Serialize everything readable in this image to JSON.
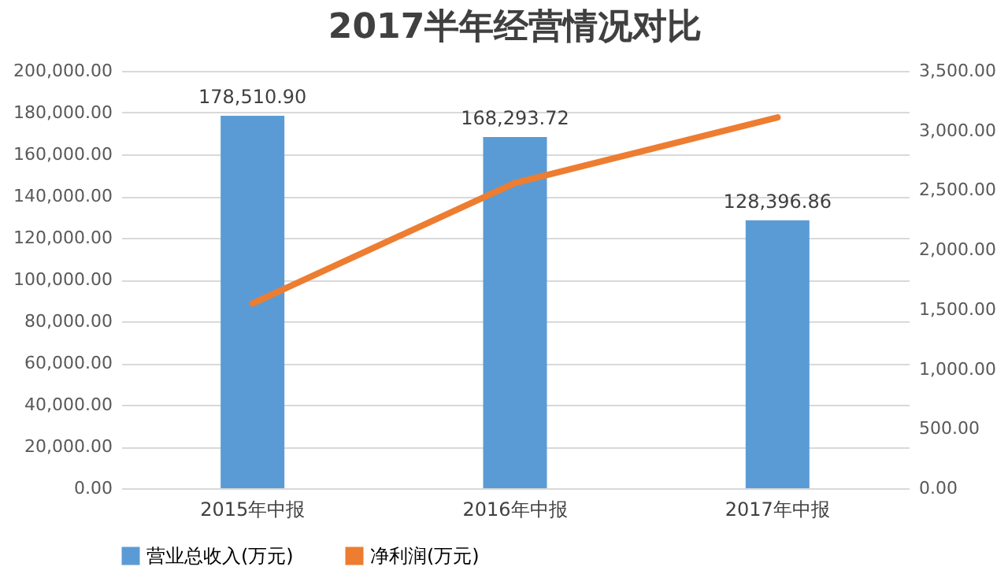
{
  "chart_data": {
    "type": "bar",
    "title": "2017半年经营情况对比",
    "categories": [
      "2015年中报",
      "2016年中报",
      "2017年中报"
    ],
    "series": [
      {
        "name": "营业总收入(万元)",
        "color": "#5b9bd5",
        "values": [
          178510.9,
          168293.72,
          128396.86
        ],
        "value_labels": [
          "178,510.90",
          "168,293.72",
          "128,396.86"
        ]
      },
      {
        "name": "净利润(万元)",
        "type": "line",
        "axis": "y2",
        "color": "#ed7d31",
        "values": [
          1550,
          2560,
          3110
        ]
      }
    ],
    "ylim": [
      0,
      200000
    ],
    "yticks": [
      {
        "value": 0,
        "label": "0.00"
      },
      {
        "value": 20000,
        "label": "20,000.00"
      },
      {
        "value": 40000,
        "label": "40,000.00"
      },
      {
        "value": 60000,
        "label": "60,000.00"
      },
      {
        "value": 80000,
        "label": "80,000.00"
      },
      {
        "value": 100000,
        "label": "100,000.00"
      },
      {
        "value": 120000,
        "label": "120,000.00"
      },
      {
        "value": 140000,
        "label": "140,000.00"
      },
      {
        "value": 160000,
        "label": "160,000.00"
      },
      {
        "value": 180000,
        "label": "180,000.00"
      },
      {
        "value": 200000,
        "label": "200,000.00"
      }
    ],
    "y2lim": [
      0,
      3500
    ],
    "y2ticks": [
      {
        "value": 0,
        "label": "0.00"
      },
      {
        "value": 500,
        "label": "500.00"
      },
      {
        "value": 1000,
        "label": "1,000.00"
      },
      {
        "value": 1500,
        "label": "1,500.00"
      },
      {
        "value": 2000,
        "label": "2,000.00"
      },
      {
        "value": 2500,
        "label": "2,500.00"
      },
      {
        "value": 3000,
        "label": "3,000.00"
      },
      {
        "value": 3500,
        "label": "3,500.00"
      }
    ],
    "grid": "y",
    "legend": "bottom"
  }
}
